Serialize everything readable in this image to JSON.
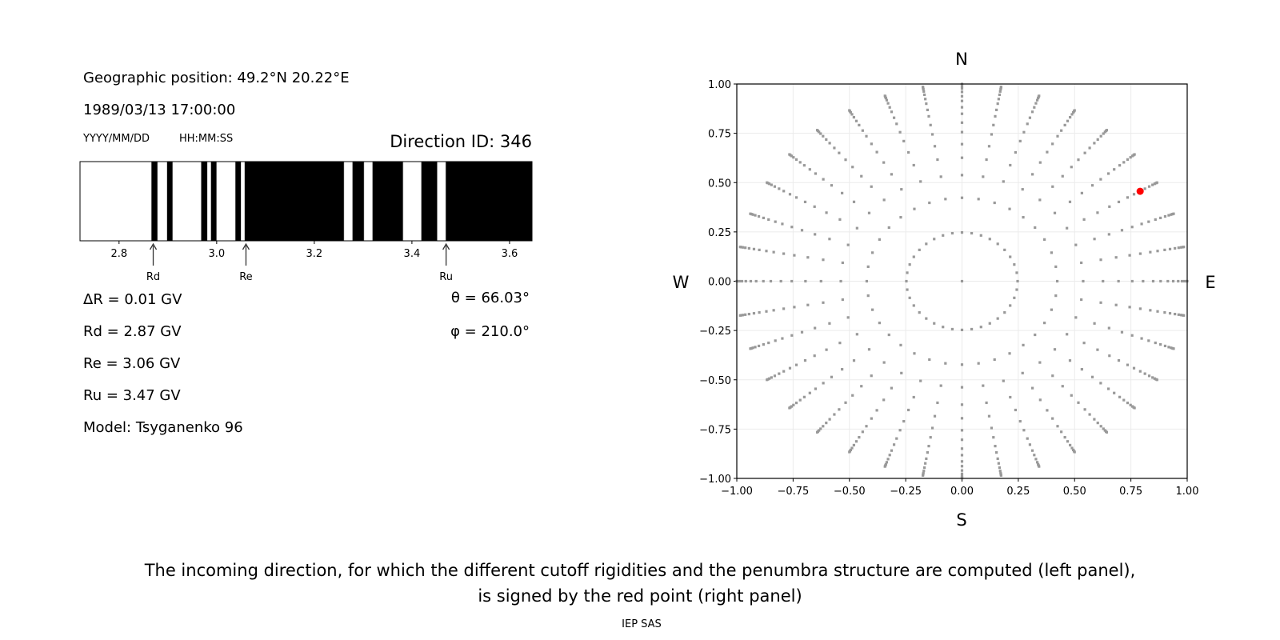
{
  "left_panel": {
    "geo_position": "Geographic position: 49.2°N 20.22°E",
    "datetime": "1989/03/13 17:00:00",
    "date_format": "YYYY/MM/DD",
    "time_format": "HH:MM:SS",
    "direction_id": "Direction ID: 346",
    "delta_r": "ΔR = 0.01 GV",
    "rd": "Rd = 2.87 GV",
    "re": "Re = 3.06 GV",
    "ru": "Ru = 3.47 GV",
    "model": "Model: Tsyganenko 96",
    "theta": "θ = 66.03°",
    "phi": "φ = 210.0°"
  },
  "caption": {
    "line1": "The incoming direction, for which the different cutoff rigidities and the penumbra structure are computed (left panel),",
    "line2": "is signed by the red point (right panel)",
    "credit": "IEP SAS"
  },
  "chart_data": [
    {
      "type": "penumbra-bar",
      "xlim": [
        2.72,
        3.646
      ],
      "xticks": [
        "2.8",
        "3.0",
        "3.2",
        "3.4",
        "3.6"
      ],
      "xtick_values": [
        2.8,
        3.0,
        3.2,
        3.4,
        3.6
      ],
      "background_color": "#000000",
      "white_segments": [
        [
          2.72,
          2.866
        ],
        [
          2.879,
          2.898
        ],
        [
          2.91,
          2.968
        ],
        [
          2.981,
          2.988
        ],
        [
          3.0,
          3.038
        ],
        [
          3.05,
          3.057
        ],
        [
          3.261,
          3.278
        ],
        [
          3.302,
          3.319
        ],
        [
          3.382,
          3.419
        ],
        [
          3.452,
          3.469
        ]
      ],
      "annotations": [
        {
          "label": "Rd",
          "value": 2.87
        },
        {
          "label": "Re",
          "value": 3.06
        },
        {
          "label": "Ru",
          "value": 3.47
        }
      ]
    },
    {
      "type": "scatter",
      "xlim": [
        -1,
        1
      ],
      "ylim": [
        -1,
        1
      ],
      "grid": true,
      "xticks": [
        "−1.00",
        "−0.75",
        "−0.50",
        "−0.25",
        "0.00",
        "0.25",
        "0.50",
        "0.75",
        "1.00"
      ],
      "yticks": [
        "−1.00",
        "−0.75",
        "−0.50",
        "−0.25",
        "0.00",
        "0.25",
        "0.50",
        "0.75",
        "1.00"
      ],
      "tick_values": [
        -1,
        -0.75,
        -0.5,
        -0.25,
        0,
        0.25,
        0.5,
        0.75,
        1
      ],
      "compass": {
        "north": "N",
        "south": "S",
        "west": "W",
        "east": "E"
      },
      "grid_points": {
        "color": "#999999",
        "azimuth_step_deg": 10,
        "radii": [
          0.247,
          0.423,
          0.538,
          0.626,
          0.695,
          0.756,
          0.804,
          0.849,
          0.882,
          0.914,
          0.938,
          0.96,
          0.977,
          0.988,
          0.995,
          1.0
        ],
        "center": [
          0,
          0
        ]
      },
      "highlight_point": {
        "x": 0.791,
        "y": 0.456,
        "color": "#ff0000"
      }
    }
  ]
}
